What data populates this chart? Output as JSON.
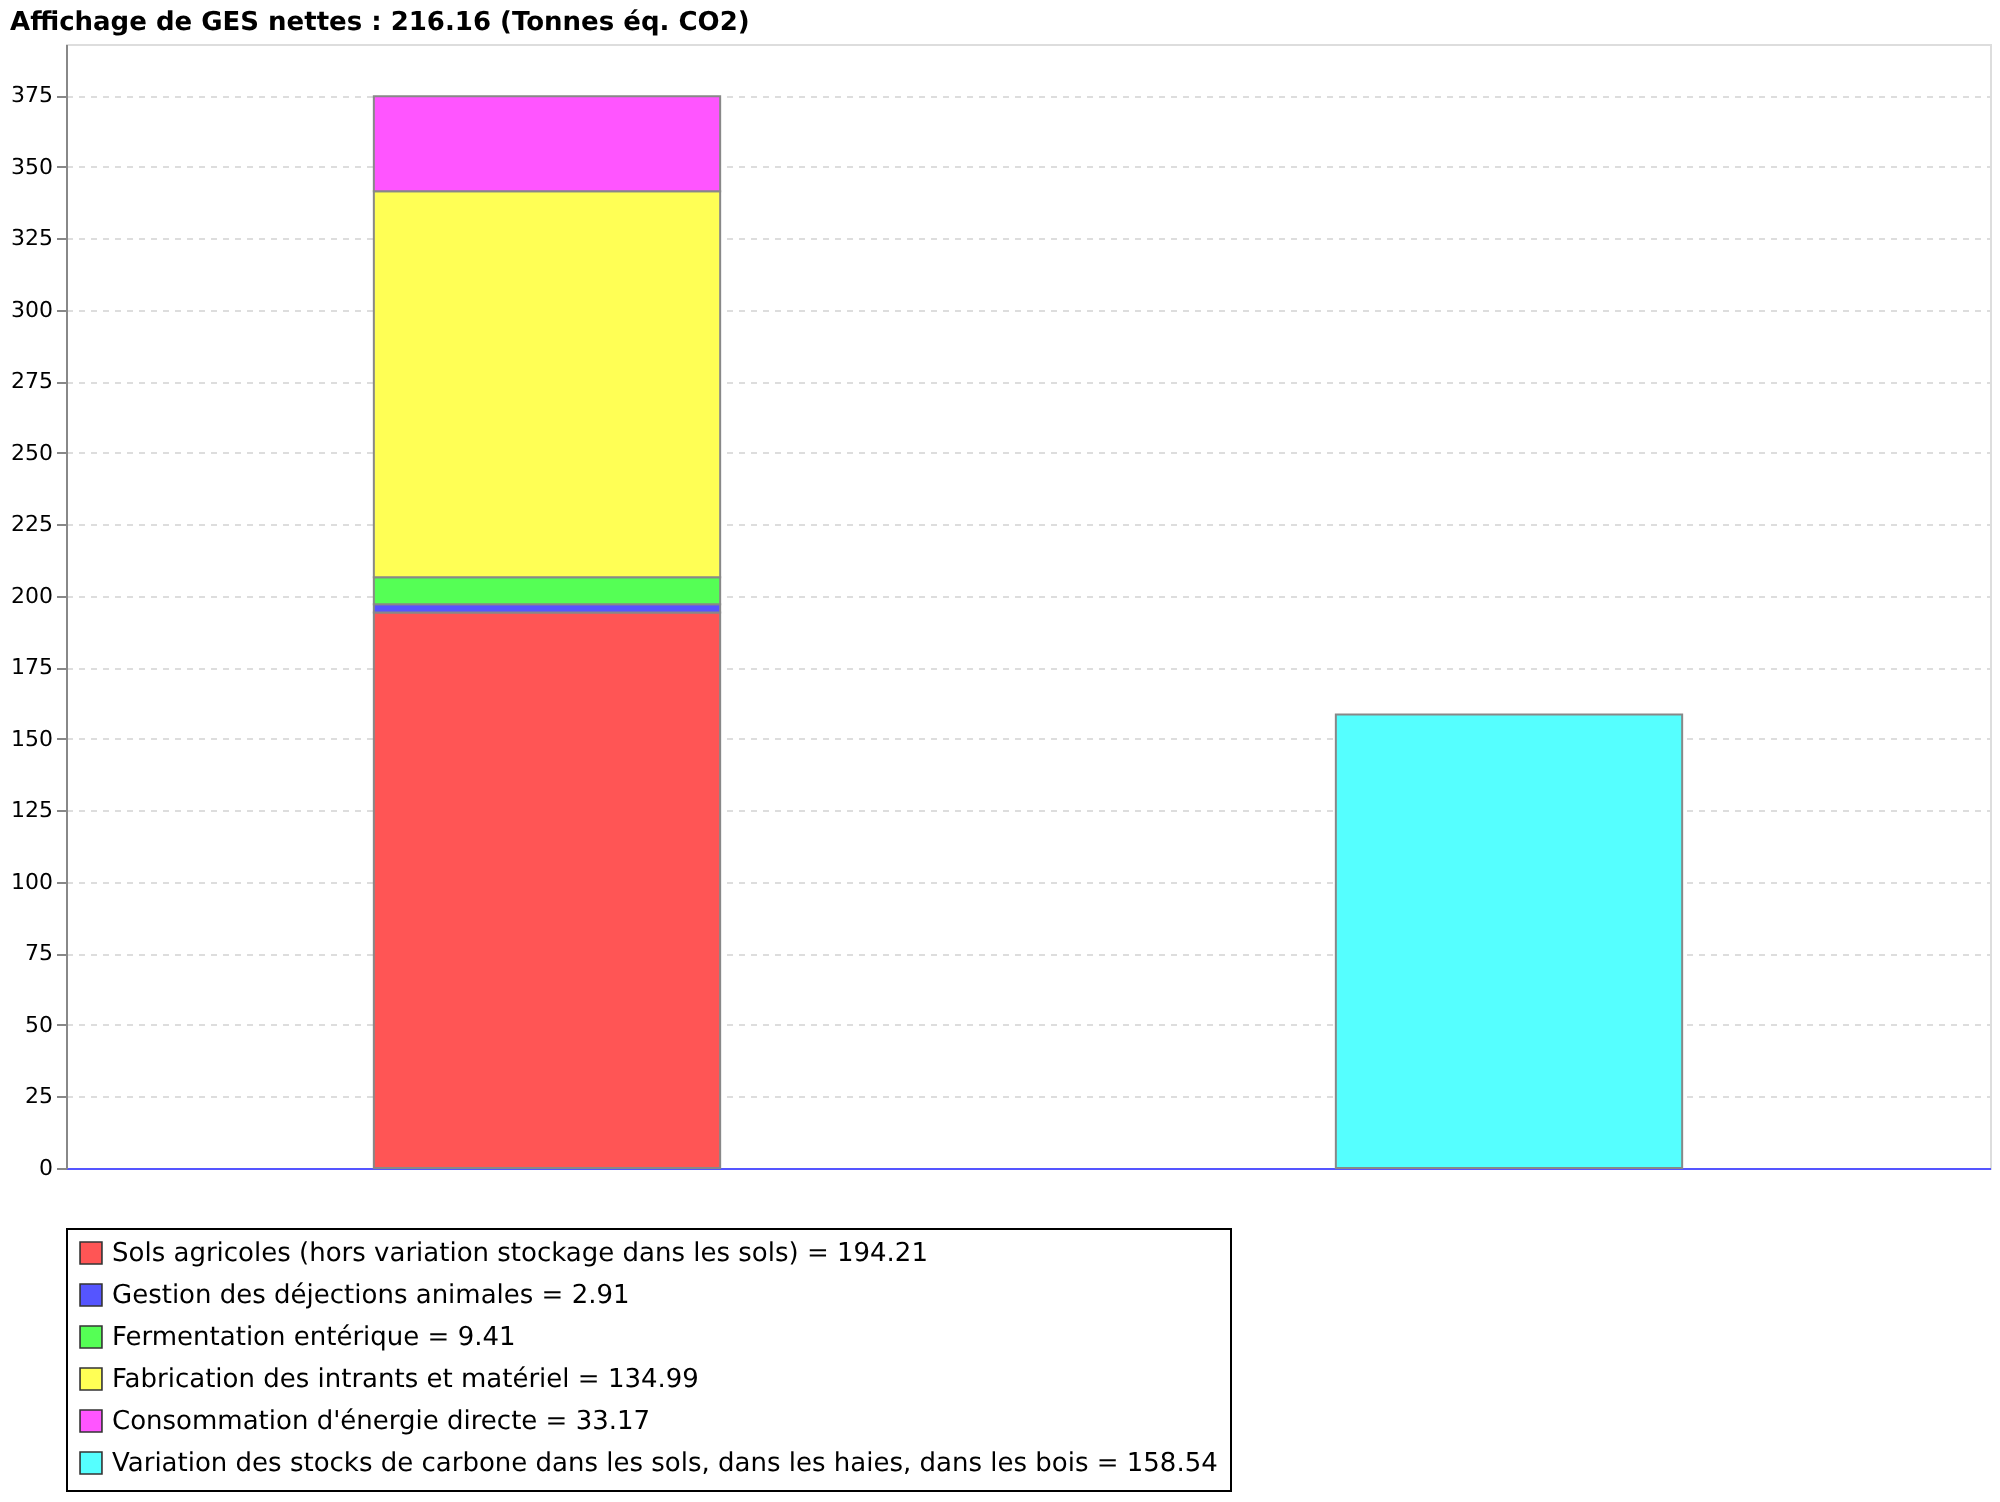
{
  "chart_data": {
    "type": "bar",
    "title": "Affichage de GES nettes : 216.16 (Tonnes éq. CO2)",
    "categories": [
      null,
      null
    ],
    "stacked": true,
    "series": [
      {
        "name": "Sols agricoles (hors variation stockage dans les sols) = 194.21",
        "color": "#ff5555",
        "values": [
          194.21,
          null
        ]
      },
      {
        "name": "Gestion des déjections animales = 2.91",
        "color": "#5555ff",
        "values": [
          2.91,
          null
        ]
      },
      {
        "name": "Fermentation entérique = 9.41",
        "color": "#55ff55",
        "values": [
          9.41,
          null
        ]
      },
      {
        "name": "Fabrication des intrants et matériel = 134.99",
        "color": "#ffff55",
        "values": [
          134.99,
          null
        ]
      },
      {
        "name": "Consommation d'énergie directe = 33.17",
        "color": "#ff55ff",
        "values": [
          33.17,
          null
        ]
      },
      {
        "name": "Variation des stocks de carbone dans les sols, dans les haies, dans les bois = 158.54",
        "color": "#55ffff",
        "values": [
          null,
          158.54
        ]
      }
    ],
    "ylim": [
      0,
      393
    ],
    "yticks": [
      0,
      25,
      50,
      75,
      100,
      125,
      150,
      175,
      200,
      225,
      250,
      275,
      300,
      325,
      350,
      375
    ],
    "grid": "y",
    "legend": "bottom"
  }
}
